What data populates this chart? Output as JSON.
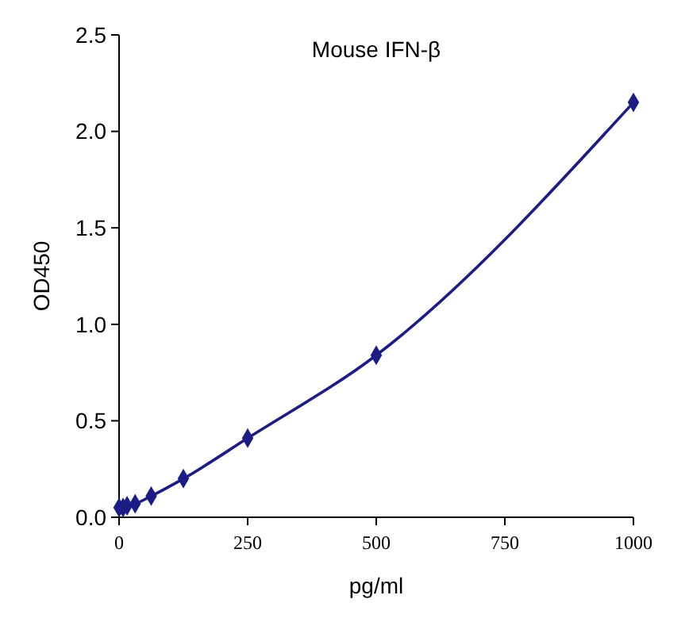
{
  "chart_data": {
    "type": "line",
    "title": "Mouse IFN-β",
    "xlabel": "pg/ml",
    "ylabel": "OD450",
    "xlim": [
      0,
      1000
    ],
    "xticks": [
      0,
      250,
      500,
      750,
      1000
    ],
    "ylim": [
      0,
      2.5
    ],
    "yticks": [
      {
        "value": 0,
        "label": "0.0"
      },
      {
        "value": 0.5,
        "label": "0.5"
      },
      {
        "value": 1,
        "label": "1.0"
      },
      {
        "value": 1.5,
        "label": "1.5"
      },
      {
        "value": 2,
        "label": "2.0"
      },
      {
        "value": 2.5,
        "label": "2.5"
      }
    ],
    "grid": false,
    "marker": "diamond",
    "line_style": "solid",
    "series": [
      {
        "color": "#1c1c85",
        "x": [
          0,
          7.8,
          15.6,
          31.25,
          62.5,
          125,
          250,
          500,
          1000
        ],
        "values": [
          0.05,
          0.05,
          0.06,
          0.07,
          0.11,
          0.2,
          0.41,
          0.84,
          2.15
        ]
      }
    ]
  }
}
